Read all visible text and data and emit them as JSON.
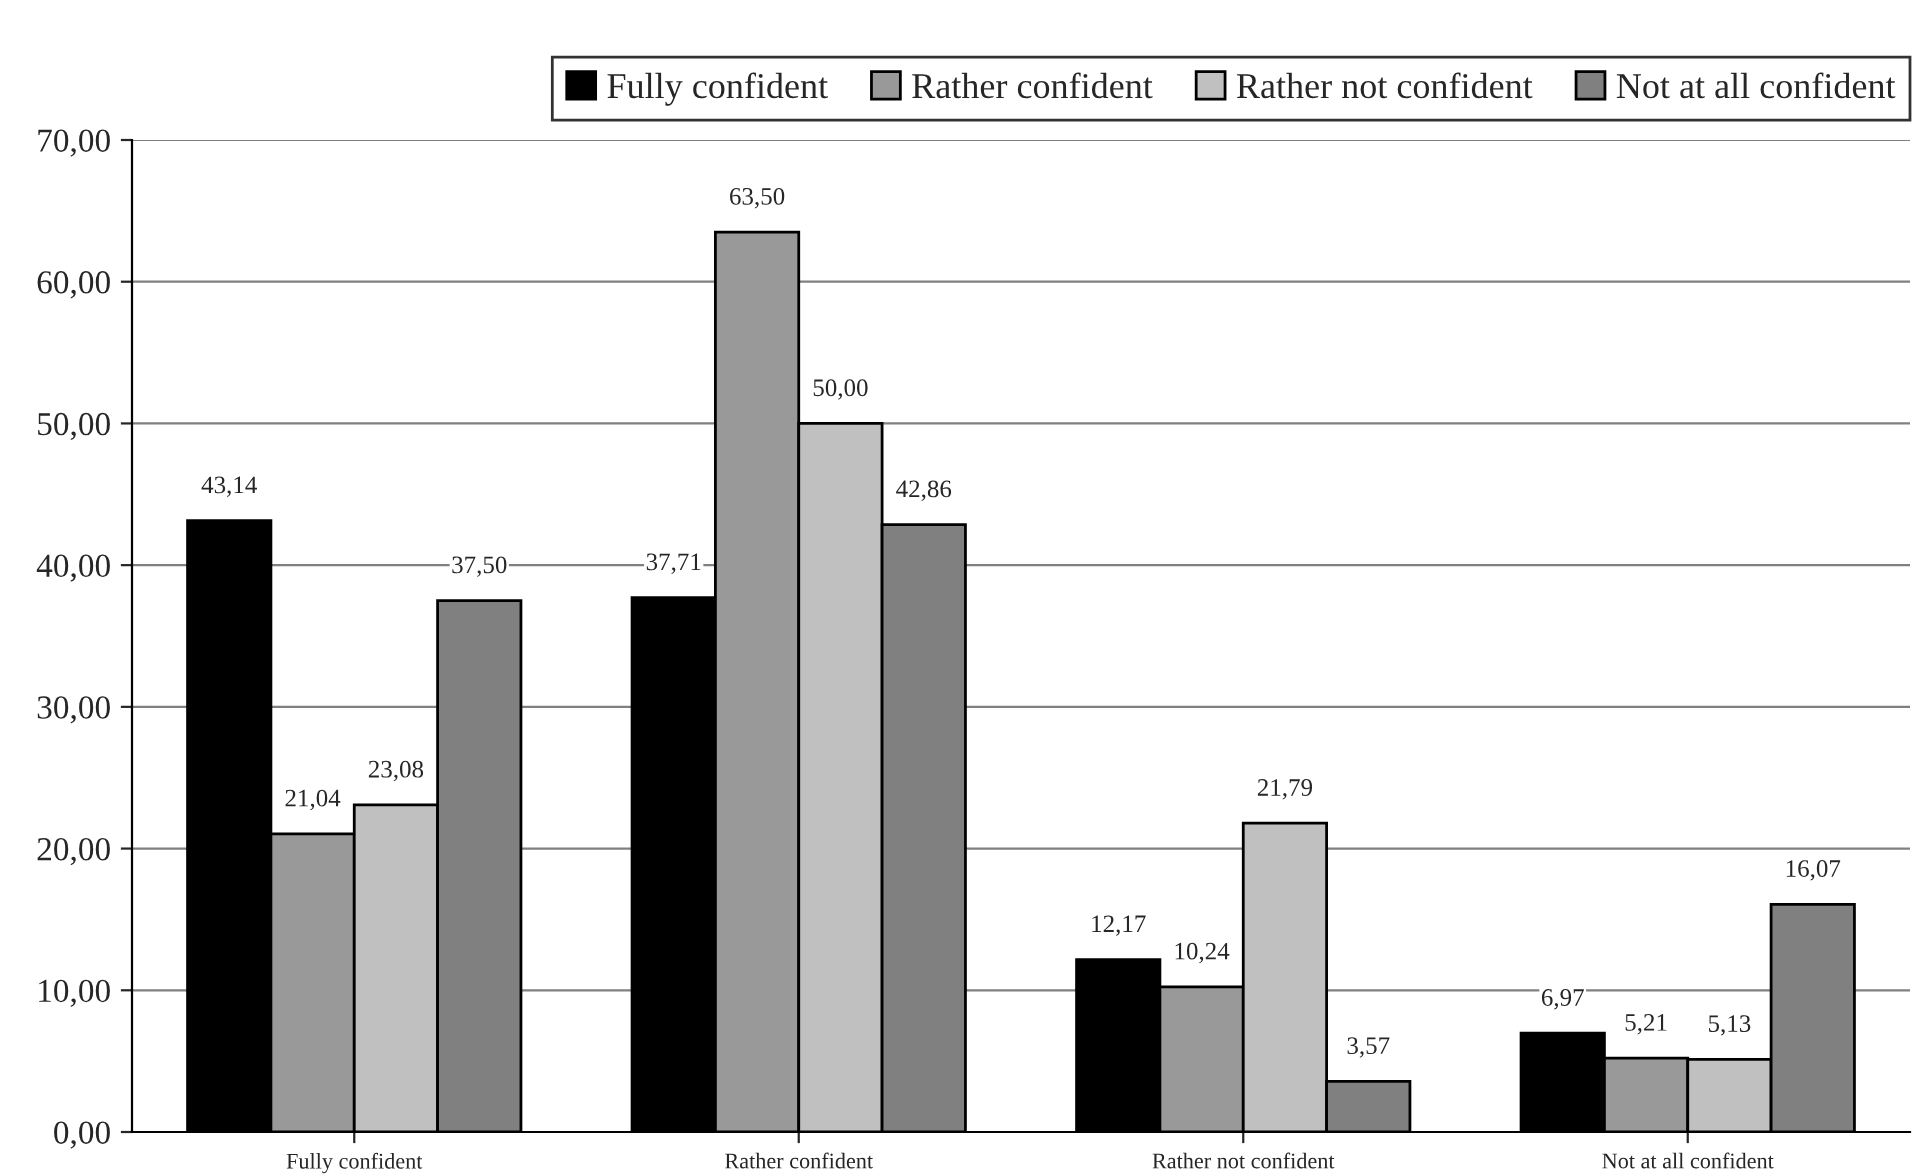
{
  "chart_data": {
    "type": "bar",
    "categories": [
      "Fully confident",
      "Rather confident",
      "Rather not confident",
      "Not at all confident"
    ],
    "series": [
      {
        "name": "Fully confident",
        "color": "#000000",
        "values": [
          43.14,
          37.71,
          12.17,
          6.97
        ],
        "value_labels": [
          "43,14",
          "37,71",
          "12,17",
          "6,97"
        ]
      },
      {
        "name": "Rather confident",
        "color": "#999999",
        "values": [
          21.04,
          63.5,
          10.24,
          5.21
        ],
        "value_labels": [
          "21,04",
          "63,50",
          "10,24",
          "5,21"
        ]
      },
      {
        "name": "Rather not confident",
        "color": "#c0c0c0",
        "values": [
          23.08,
          50.0,
          21.79,
          5.13
        ],
        "value_labels": [
          "23,08",
          "50,00",
          "21,79",
          "5,13"
        ]
      },
      {
        "name": "Not at all confident",
        "color": "#808080",
        "values": [
          37.5,
          42.86,
          3.57,
          16.07
        ],
        "value_labels": [
          "37,50",
          "42,86",
          "3,57",
          "16,07"
        ]
      }
    ],
    "ylim": [
      0,
      70
    ],
    "yticks": [
      {
        "value": 0,
        "label": "0,00"
      },
      {
        "value": 10,
        "label": "10,00"
      },
      {
        "value": 20,
        "label": "20,00"
      },
      {
        "value": 30,
        "label": "30,00"
      },
      {
        "value": 40,
        "label": "40,00"
      },
      {
        "value": 50,
        "label": "50,00"
      },
      {
        "value": 60,
        "label": "60,00"
      },
      {
        "value": 70,
        "label": "70,00"
      }
    ],
    "grid": "y",
    "legend": "top right"
  }
}
